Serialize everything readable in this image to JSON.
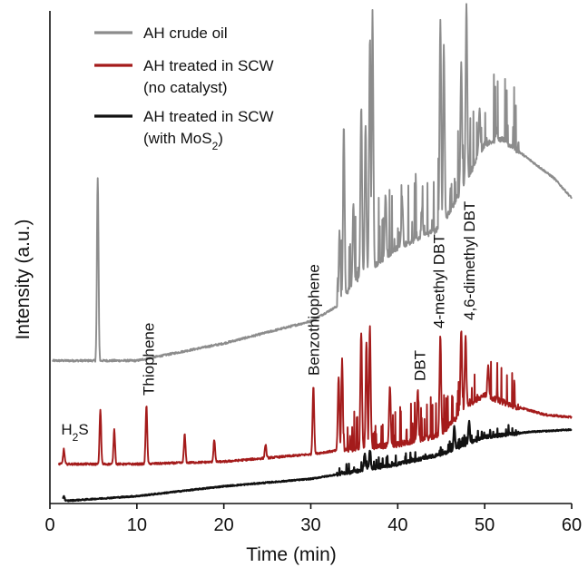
{
  "chart_data": {
    "type": "line",
    "xlabel": "Time (min)",
    "ylabel": "Intensity (a.u.)",
    "xlim": [
      0,
      60
    ],
    "x_ticks": [
      0,
      10,
      20,
      30,
      40,
      50,
      60
    ],
    "grid": false,
    "legend_position": "top-left",
    "series": [
      {
        "name": "AH crude oil",
        "color": "#8c8c8c",
        "baseline": [
          [
            0.3,
            0.29
          ],
          [
            10,
            0.29
          ],
          [
            20,
            0.325
          ],
          [
            30,
            0.37
          ],
          [
            33,
            0.4
          ],
          [
            35,
            0.45
          ],
          [
            40,
            0.52
          ],
          [
            45,
            0.56
          ],
          [
            48,
            0.66
          ],
          [
            50,
            0.73
          ],
          [
            52,
            0.74
          ],
          [
            55,
            0.7
          ],
          [
            58,
            0.66
          ],
          [
            60,
            0.62
          ]
        ],
        "peaks": [
          [
            5.5,
            0.66
          ],
          [
            33.3,
            0.55
          ],
          [
            33.8,
            0.77
          ],
          [
            34.9,
            0.61
          ],
          [
            35.8,
            0.81
          ],
          [
            36.3,
            0.77
          ],
          [
            36.8,
            0.95
          ],
          [
            37.1,
            1.0
          ],
          [
            38.6,
            0.63
          ],
          [
            40.5,
            0.62
          ],
          [
            42.8,
            0.6
          ],
          [
            44.9,
            0.98
          ],
          [
            45.3,
            0.93
          ],
          [
            47.3,
            0.89
          ],
          [
            47.9,
            1.02
          ],
          [
            49.4,
            0.8
          ],
          [
            51.4,
            0.76
          ]
        ]
      },
      {
        "name": "AH treated in SCW\n(no catalyst)",
        "color": "#a41b1b",
        "baseline": [
          [
            1,
            0.08
          ],
          [
            10,
            0.08
          ],
          [
            20,
            0.085
          ],
          [
            30,
            0.1
          ],
          [
            34,
            0.11
          ],
          [
            40,
            0.12
          ],
          [
            45,
            0.14
          ],
          [
            48,
            0.2
          ],
          [
            50,
            0.22
          ],
          [
            53,
            0.2
          ],
          [
            57,
            0.18
          ],
          [
            60,
            0.175
          ]
        ],
        "peaks": [
          [
            1.6,
            0.11
          ],
          [
            5.8,
            0.19
          ],
          [
            7.4,
            0.15
          ],
          [
            11.1,
            0.2
          ],
          [
            15.5,
            0.14
          ],
          [
            18.9,
            0.13
          ],
          [
            24.8,
            0.12
          ],
          [
            30.3,
            0.24
          ],
          [
            33.2,
            0.26
          ],
          [
            33.6,
            0.29
          ],
          [
            35.8,
            0.35
          ],
          [
            36.4,
            0.33
          ],
          [
            36.8,
            0.36
          ],
          [
            39.1,
            0.24
          ],
          [
            42.3,
            0.23
          ],
          [
            44.9,
            0.34
          ],
          [
            47.3,
            0.35
          ],
          [
            47.8,
            0.34
          ],
          [
            50.4,
            0.28
          ]
        ]
      },
      {
        "name": "AH treated in SCW\n(with MoS2)",
        "color": "#111111",
        "baseline": [
          [
            1.5,
            0.005
          ],
          [
            10,
            0.015
          ],
          [
            20,
            0.035
          ],
          [
            30,
            0.05
          ],
          [
            35,
            0.065
          ],
          [
            40,
            0.08
          ],
          [
            45,
            0.1
          ],
          [
            50,
            0.135
          ],
          [
            55,
            0.145
          ],
          [
            60,
            0.15
          ]
        ],
        "peaks": [
          [
            1.6,
            0.015
          ],
          [
            36.2,
            0.1
          ],
          [
            36.8,
            0.11
          ],
          [
            46.5,
            0.155
          ],
          [
            48.2,
            0.165
          ]
        ]
      }
    ],
    "annotations": [
      {
        "label": "H2S",
        "x": 1.5
      },
      {
        "label": "Thiophene",
        "x": 11.1
      },
      {
        "label": "Benzothiophene",
        "x": 30.3
      },
      {
        "label": "DBT",
        "x": 42.3
      },
      {
        "label": "4-methyl DBT",
        "x": 44.9
      },
      {
        "label": "4,6-dimethyl DBT",
        "x": 47.8
      }
    ]
  }
}
